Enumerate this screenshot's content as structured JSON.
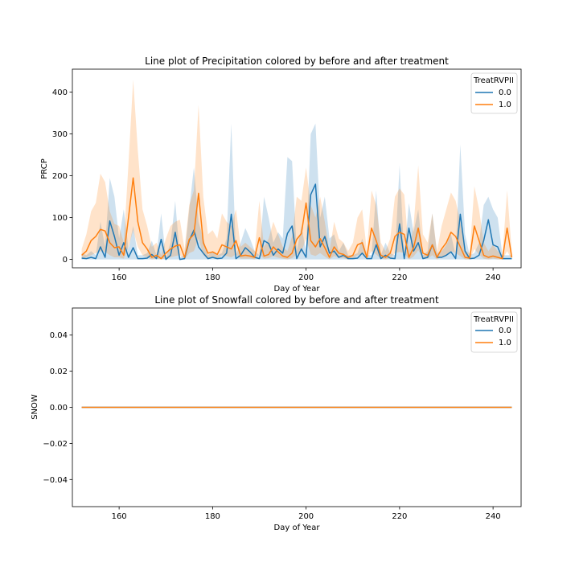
{
  "chart_data": [
    {
      "type": "line",
      "title": "Line plot of Precipitation colored by before and after treatment",
      "xlabel": "Day of Year",
      "ylabel": "PRCP",
      "xlim": [
        150,
        246
      ],
      "ylim": [
        -20,
        455
      ],
      "xticks": [
        "160",
        "180",
        "200",
        "220",
        "240"
      ],
      "yticks": [
        "0",
        "100",
        "200",
        "300",
        "400"
      ],
      "grid": false,
      "legend": {
        "title": "TreatRVPII",
        "placement": "top-right",
        "entries": [
          "0.0",
          "1.0"
        ]
      },
      "colors": [
        "#1f77b4",
        "#ff7f0e"
      ],
      "x": [
        152,
        153,
        154,
        155,
        156,
        157,
        158,
        159,
        160,
        161,
        162,
        163,
        164,
        165,
        166,
        167,
        168,
        169,
        170,
        171,
        172,
        173,
        174,
        175,
        176,
        177,
        178,
        179,
        180,
        181,
        182,
        183,
        184,
        185,
        186,
        187,
        188,
        189,
        190,
        191,
        192,
        193,
        194,
        195,
        196,
        197,
        198,
        199,
        200,
        201,
        202,
        203,
        204,
        205,
        206,
        207,
        208,
        209,
        210,
        211,
        212,
        213,
        214,
        215,
        216,
        217,
        218,
        219,
        220,
        221,
        222,
        223,
        224,
        225,
        226,
        227,
        228,
        229,
        230,
        231,
        232,
        233,
        234,
        235,
        236,
        237,
        238,
        239,
        240,
        241,
        242,
        243,
        244
      ],
      "series": [
        {
          "name": "0.0",
          "values": [
            3,
            2,
            5,
            2,
            30,
            5,
            92,
            55,
            10,
            40,
            5,
            28,
            2,
            2,
            3,
            12,
            2,
            48,
            0,
            10,
            65,
            0,
            2,
            45,
            70,
            30,
            15,
            2,
            5,
            2,
            3,
            15,
            108,
            2,
            10,
            28,
            18,
            5,
            2,
            45,
            38,
            10,
            25,
            15,
            62,
            80,
            2,
            25,
            5,
            155,
            180,
            30,
            55,
            15,
            20,
            5,
            10,
            2,
            2,
            3,
            15,
            2,
            2,
            35,
            2,
            10,
            3,
            2,
            85,
            2,
            75,
            20,
            40,
            2,
            5,
            35,
            5,
            5,
            10,
            18,
            2,
            108,
            20,
            2,
            3,
            10,
            45,
            95,
            35,
            30,
            2,
            2,
            2
          ],
          "lower": [
            0,
            0,
            0,
            0,
            0,
            0,
            0,
            0,
            0,
            0,
            0,
            0,
            0,
            0,
            0,
            0,
            0,
            0,
            0,
            0,
            0,
            0,
            0,
            0,
            0,
            0,
            0,
            0,
            0,
            0,
            0,
            0,
            0,
            0,
            0,
            0,
            0,
            0,
            0,
            0,
            0,
            0,
            0,
            0,
            0,
            0,
            0,
            0,
            0,
            0,
            0,
            0,
            0,
            0,
            0,
            0,
            0,
            0,
            0,
            0,
            0,
            0,
            0,
            0,
            0,
            0,
            0,
            0,
            0,
            0,
            0,
            0,
            0,
            0,
            0,
            0,
            0,
            0,
            0,
            0,
            0,
            0,
            0,
            0,
            0,
            0,
            0,
            0,
            0,
            0,
            0,
            0,
            0
          ],
          "upper": [
            15,
            10,
            20,
            10,
            90,
            30,
            195,
            150,
            50,
            120,
            25,
            80,
            10,
            10,
            15,
            45,
            10,
            110,
            5,
            40,
            140,
            5,
            10,
            120,
            220,
            90,
            50,
            10,
            20,
            10,
            15,
            50,
            325,
            10,
            40,
            75,
            50,
            20,
            10,
            150,
            100,
            40,
            65,
            50,
            245,
            235,
            20,
            80,
            20,
            300,
            325,
            100,
            150,
            50,
            60,
            20,
            40,
            10,
            10,
            15,
            50,
            10,
            10,
            165,
            10,
            40,
            15,
            10,
            225,
            10,
            135,
            65,
            120,
            10,
            20,
            110,
            15,
            20,
            35,
            60,
            10,
            275,
            60,
            10,
            15,
            40,
            130,
            150,
            120,
            100,
            10,
            10,
            10
          ]
        },
        {
          "name": "1.0",
          "values": [
            10,
            20,
            45,
            55,
            72,
            68,
            40,
            28,
            30,
            10,
            100,
            195,
            90,
            40,
            25,
            5,
            10,
            2,
            15,
            25,
            32,
            35,
            5,
            48,
            60,
            158,
            40,
            15,
            18,
            12,
            35,
            30,
            25,
            45,
            8,
            10,
            8,
            5,
            52,
            8,
            12,
            30,
            18,
            8,
            5,
            15,
            48,
            62,
            135,
            45,
            30,
            50,
            28,
            5,
            30,
            15,
            12,
            5,
            10,
            35,
            40,
            5,
            75,
            45,
            10,
            5,
            15,
            55,
            65,
            60,
            5,
            28,
            75,
            15,
            10,
            35,
            5,
            25,
            40,
            65,
            55,
            30,
            5,
            3,
            80,
            45,
            10,
            5,
            8,
            5,
            2,
            75,
            5
          ],
          "lower": [
            2,
            5,
            10,
            15,
            20,
            18,
            10,
            5,
            5,
            2,
            30,
            70,
            30,
            10,
            5,
            0,
            2,
            0,
            3,
            5,
            8,
            10,
            0,
            15,
            20,
            50,
            10,
            3,
            5,
            2,
            10,
            8,
            5,
            12,
            2,
            2,
            2,
            0,
            12,
            2,
            3,
            8,
            4,
            2,
            0,
            3,
            12,
            18,
            50,
            12,
            8,
            15,
            7,
            0,
            8,
            4,
            3,
            0,
            2,
            10,
            12,
            0,
            20,
            12,
            2,
            0,
            3,
            15,
            18,
            15,
            0,
            7,
            22,
            3,
            2,
            10,
            0,
            6,
            10,
            20,
            15,
            8,
            0,
            0,
            25,
            12,
            2,
            0,
            2,
            0,
            0,
            20,
            0
          ],
          "upper": [
            25,
            60,
            115,
            135,
            205,
            185,
            115,
            85,
            80,
            40,
            230,
            430,
            260,
            120,
            80,
            30,
            40,
            10,
            50,
            80,
            90,
            95,
            25,
            130,
            165,
            370,
            150,
            60,
            70,
            50,
            110,
            90,
            80,
            120,
            30,
            40,
            30,
            20,
            140,
            30,
            50,
            90,
            60,
            30,
            20,
            55,
            150,
            140,
            220,
            130,
            100,
            150,
            90,
            20,
            90,
            50,
            40,
            20,
            40,
            100,
            120,
            20,
            165,
            130,
            40,
            20,
            50,
            150,
            170,
            155,
            20,
            80,
            225,
            60,
            40,
            110,
            20,
            80,
            120,
            160,
            140,
            90,
            20,
            15,
            175,
            120,
            40,
            20,
            35,
            20,
            10,
            165,
            20
          ]
        }
      ]
    },
    {
      "type": "line",
      "title": "Line plot of Snowfall colored by before and after treatment",
      "xlabel": "Day of Year",
      "ylabel": "SNOW",
      "xlim": [
        150,
        246
      ],
      "ylim": [
        -0.055,
        0.055
      ],
      "xticks": [
        "160",
        "180",
        "200",
        "220",
        "240"
      ],
      "yticks": [
        "−0.04",
        "−0.02",
        "0.00",
        "0.02",
        "0.04"
      ],
      "yticks_values": [
        -0.04,
        -0.02,
        0.0,
        0.02,
        0.04
      ],
      "grid": false,
      "legend": {
        "title": "TreatRVPII",
        "placement": "top-right",
        "entries": [
          "0.0",
          "1.0"
        ]
      },
      "colors": [
        "#1f77b4",
        "#ff7f0e"
      ],
      "x": [
        152,
        244
      ],
      "series": [
        {
          "name": "0.0",
          "values": [
            0,
            0
          ]
        },
        {
          "name": "1.0",
          "values": [
            0,
            0
          ]
        }
      ]
    }
  ]
}
